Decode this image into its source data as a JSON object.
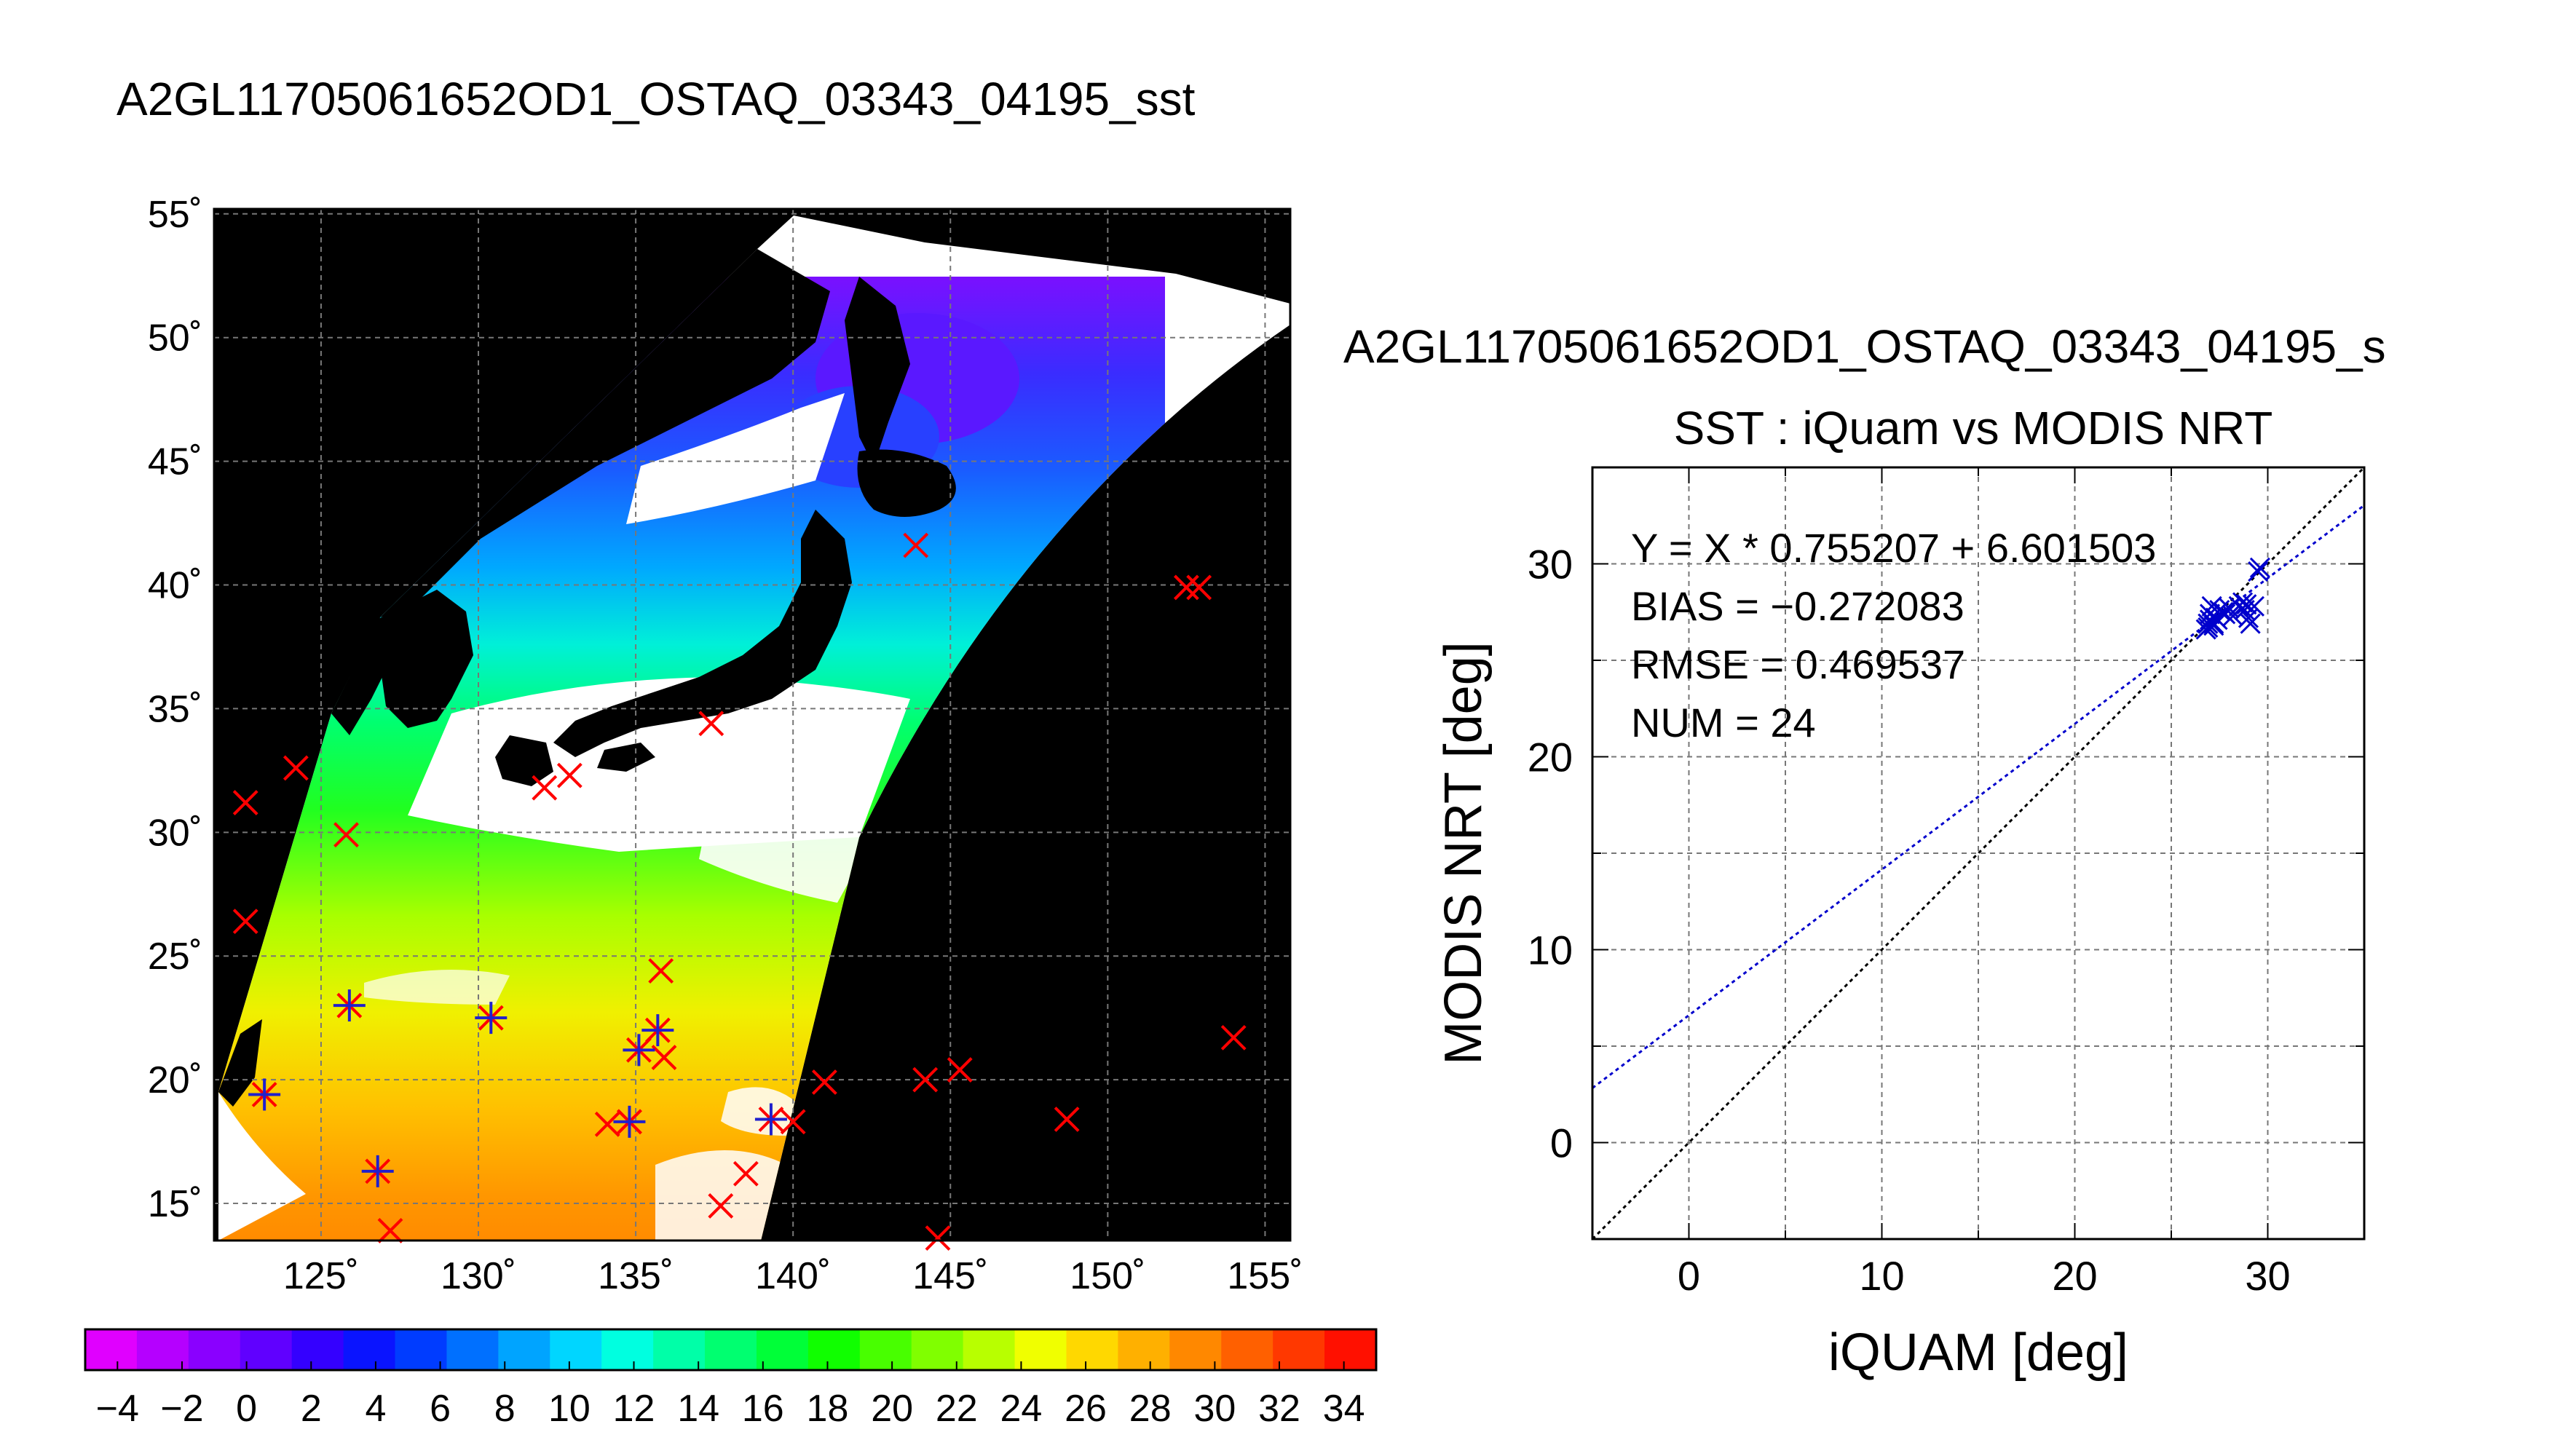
{
  "page_title": "A2GL11705061652OD1_OSTAQ_03343_04195_sst",
  "chart_data": [
    {
      "type": "map",
      "title": "A2GL11705061652OD1_OSTAQ_03343_04195_sst",
      "xlim": [
        121.6,
        155.8
      ],
      "ylim": [
        13.5,
        55.2
      ],
      "x_ticks": [
        125,
        130,
        135,
        140,
        145,
        150,
        155
      ],
      "y_ticks": [
        15,
        20,
        25,
        30,
        35,
        40,
        45,
        50,
        55
      ],
      "x_tick_labels": [
        "125˚",
        "130˚",
        "135˚",
        "140˚",
        "145˚",
        "150˚",
        "155˚"
      ],
      "y_tick_labels": [
        "15˚",
        "20˚",
        "25˚",
        "30˚",
        "35˚",
        "40˚",
        "45˚",
        "50˚",
        "55˚"
      ],
      "grid": true,
      "colorbar": {
        "min": -5,
        "max": 35,
        "tick_values": [
          -4,
          -2,
          0,
          2,
          4,
          6,
          8,
          10,
          12,
          14,
          16,
          18,
          20,
          22,
          24,
          26,
          28,
          30,
          32,
          34
        ],
        "tick_labels": [
          "−4",
          "−2",
          "0",
          "2",
          "4",
          "6",
          "8",
          "10",
          "12",
          "14",
          "16",
          "18",
          "20",
          "22",
          "24",
          "26",
          "28",
          "30",
          "32",
          "34"
        ],
        "colors": [
          "#e000ff",
          "#b500ff",
          "#8a00ff",
          "#6000ff",
          "#3400ff",
          "#0a14ff",
          "#003cff",
          "#0070ff",
          "#00a4ff",
          "#00d6ff",
          "#00ffe0",
          "#00ffa8",
          "#00ff70",
          "#00ff38",
          "#10ff00",
          "#48ff00",
          "#80ff00",
          "#b8ff00",
          "#f0ff00",
          "#ffd800",
          "#ffb000",
          "#ff8800",
          "#ff6000",
          "#ff3800",
          "#ff1000"
        ]
      },
      "insitu_points_red_x": [
        [
          122.6,
          31.2
        ],
        [
          124.2,
          32.6
        ],
        [
          122.6,
          26.4
        ],
        [
          125.8,
          29.9
        ],
        [
          132.1,
          31.8
        ],
        [
          132.9,
          32.3
        ],
        [
          137.4,
          34.4
        ],
        [
          143.9,
          41.6
        ],
        [
          152.5,
          39.9
        ],
        [
          152.9,
          39.9
        ],
        [
          154.0,
          21.7
        ],
        [
          145.3,
          20.4
        ],
        [
          144.2,
          20.0
        ],
        [
          148.7,
          18.4
        ],
        [
          141.0,
          19.9
        ],
        [
          135.8,
          24.4
        ],
        [
          135.9,
          20.9
        ],
        [
          140.0,
          18.3
        ],
        [
          134.1,
          18.2
        ],
        [
          134.8,
          18.3
        ],
        [
          138.5,
          16.2
        ],
        [
          137.7,
          14.9
        ],
        [
          127.2,
          13.9
        ],
        [
          144.6,
          13.6
        ]
      ],
      "matchup_points_blue_star": [
        [
          123.2,
          19.4
        ],
        [
          125.9,
          23.0
        ],
        [
          126.8,
          16.3
        ],
        [
          130.4,
          22.5
        ],
        [
          135.1,
          21.2
        ],
        [
          135.7,
          22.0
        ],
        [
          134.8,
          18.3
        ],
        [
          139.3,
          18.4
        ]
      ]
    },
    {
      "type": "scatter",
      "suptitle": "A2GL11705061652OD1_OSTAQ_03343_04195_s",
      "title": "SST : iQuam vs MODIS NRT",
      "xlabel": "iQUAM [deg]",
      "ylabel": "MODIS NRT [deg]",
      "xlim": [
        -5,
        35
      ],
      "ylim": [
        -5,
        35
      ],
      "x_ticks": [
        0,
        10,
        20,
        30
      ],
      "y_ticks": [
        0,
        10,
        20,
        30
      ],
      "grid": true,
      "annotations": [
        "Y = X * 0.755207 + 6.601503",
        "BIAS = −0.272083",
        "RMSE = 0.469537",
        "NUM = 24"
      ],
      "fit": {
        "slope": 0.755207,
        "intercept": 6.601503,
        "color": "#0000cc"
      },
      "identity_line_color": "#000000",
      "points": [
        [
          26.8,
          26.6
        ],
        [
          26.9,
          26.9
        ],
        [
          27.0,
          27.4
        ],
        [
          27.2,
          26.9
        ],
        [
          27.1,
          27.8
        ],
        [
          27.3,
          27.2
        ],
        [
          27.5,
          27.6
        ],
        [
          27.4,
          27.1
        ],
        [
          27.7,
          27.5
        ],
        [
          28.0,
          27.7
        ],
        [
          28.2,
          27.3
        ],
        [
          28.5,
          27.8
        ],
        [
          28.8,
          27.6
        ],
        [
          29.0,
          27.2
        ],
        [
          29.1,
          26.9
        ],
        [
          29.3,
          27.8
        ],
        [
          29.5,
          29.6
        ],
        [
          29.6,
          29.8
        ],
        [
          26.9,
          26.7
        ],
        [
          27.0,
          27.1
        ],
        [
          28.7,
          28.0
        ],
        [
          27.8,
          27.4
        ],
        [
          27.2,
          26.8
        ],
        [
          28.9,
          27.9
        ]
      ],
      "point_color": "#0000cc"
    }
  ]
}
